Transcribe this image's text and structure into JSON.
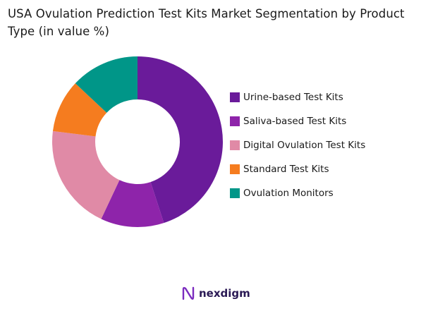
{
  "title": "USA Ovulation Prediction Test Kits Market Segmentation by Product Type (in value %)",
  "chart_data": {
    "type": "donut",
    "unit": "%",
    "categories": [
      "Urine-based Test Kits",
      "Saliva-based Test Kits",
      "Digital Ovulation Test Kits",
      "Standard Test Kits",
      "Ovulation Monitors"
    ],
    "values": [
      45,
      12,
      20,
      10,
      13
    ],
    "colors": [
      "#6a1b9a",
      "#8e24aa",
      "#e08aa6",
      "#f57c1f",
      "#009688"
    ],
    "start_angle": "12 o'clock",
    "direction": "clockwise",
    "legend_position": "right"
  },
  "brand": {
    "name": "nexdigm",
    "logo_icon": "nexdigm-logo-icon"
  }
}
